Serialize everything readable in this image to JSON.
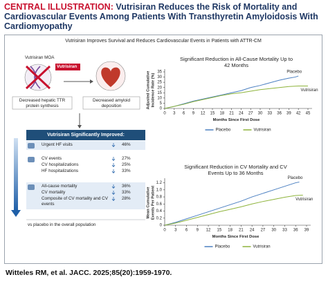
{
  "header": {
    "label": "CENTRAL ILLUSTRATION:",
    "title": "Vutrisiran Reduces the Risk of Mortality and Cardiovascular Events Among Patients With Transthyretin Amyloidosis With Cardiomyopathy"
  },
  "subtitle": "Vutrisiran Improves Survival and Reduces Cardiovascular Events in Patients with ATTR-CM",
  "moa": {
    "title": "Vutrisiran MOA",
    "drug": "Vutrisiran",
    "effects": [
      "Decreased hepatic TTR protein synthesis",
      "Decreased amyloid deposition"
    ]
  },
  "improved": {
    "heading": "Vutrisiran Significantly Improved:",
    "groups": [
      {
        "items": [
          {
            "label": "Urgent HF visits",
            "value": "46%"
          }
        ]
      },
      {
        "items": [
          {
            "label": "CV events",
            "value": "27%"
          },
          {
            "label": "CV hospitalizations",
            "value": "25%"
          },
          {
            "label": "HF hospitalizations",
            "value": "33%"
          }
        ]
      },
      {
        "items": [
          {
            "label": "All-cause mortality",
            "value": "36%"
          },
          {
            "label": "CV mortality",
            "value": "33%"
          },
          {
            "label": "Composite of CV mortality and CV events",
            "value": "28%"
          }
        ]
      }
    ],
    "note": "vs placebo in the overall population"
  },
  "chart_data": [
    {
      "type": "line",
      "title": "Significant Reduction in All-Cause Mortality Up to 42 Months",
      "x_label": "Months Since First Dose",
      "y_label": "Adjusted Cumulative Incidence Rate (%)",
      "xlim": [
        0,
        45
      ],
      "ylim": [
        0,
        35
      ],
      "xticks": [
        0,
        3,
        6,
        9,
        12,
        15,
        18,
        21,
        24,
        27,
        30,
        33,
        36,
        39,
        42,
        45
      ],
      "yticks": [
        0,
        5,
        10,
        15,
        20,
        25,
        30,
        35
      ],
      "series": [
        {
          "name": "Placebo",
          "color": "#4a7fc1",
          "x": [
            0,
            3,
            6,
            9,
            12,
            15,
            18,
            21,
            24,
            27,
            30,
            33,
            36,
            39,
            41,
            42
          ],
          "values": [
            0,
            2,
            4.5,
            7,
            9,
            11,
            13,
            15,
            17,
            20,
            22,
            24.5,
            27,
            29,
            30,
            31
          ]
        },
        {
          "name": "Vutrisiran",
          "color": "#8db33a",
          "x": [
            0,
            3,
            6,
            9,
            12,
            15,
            18,
            21,
            24,
            27,
            30,
            33,
            36,
            39,
            42,
            45
          ],
          "values": [
            0,
            2,
            4,
            6.5,
            8.5,
            10.5,
            12.5,
            14,
            15,
            16.5,
            18,
            19,
            20,
            21,
            21.5,
            21.5
          ]
        }
      ]
    },
    {
      "type": "line",
      "title": "Significant Reduction in CV Mortality and CV Events Up to 36 Months",
      "x_label": "Months Since First Dose",
      "y_label": "Mean Cumulative Events Per Patient",
      "xlim": [
        0,
        39
      ],
      "ylim": [
        0,
        1.25
      ],
      "xticks": [
        0,
        3,
        6,
        9,
        12,
        15,
        18,
        21,
        24,
        27,
        30,
        33,
        36,
        39
      ],
      "yticks": [
        0,
        0.2,
        0.4,
        0.6,
        0.8,
        {
          "value": 1,
          "label": "1.0"
        },
        1.2
      ],
      "series": [
        {
          "name": "Placebo",
          "color": "#4a7fc1",
          "x": [
            0,
            3,
            6,
            9,
            12,
            15,
            18,
            21,
            24,
            27,
            30,
            33,
            36,
            37
          ],
          "values": [
            0,
            0.08,
            0.18,
            0.28,
            0.38,
            0.48,
            0.58,
            0.68,
            0.8,
            0.9,
            1.0,
            1.1,
            1.2,
            1.22
          ]
        },
        {
          "name": "Vutrisiran",
          "color": "#8db33a",
          "x": [
            0,
            3,
            6,
            9,
            12,
            15,
            18,
            21,
            24,
            27,
            30,
            33,
            36,
            38
          ],
          "values": [
            0,
            0.06,
            0.14,
            0.22,
            0.3,
            0.38,
            0.45,
            0.52,
            0.6,
            0.67,
            0.73,
            0.79,
            0.84,
            0.85
          ]
        }
      ]
    }
  ],
  "citation": "Witteles RM, et al. JACC. 2025;85(20):1959-1970."
}
